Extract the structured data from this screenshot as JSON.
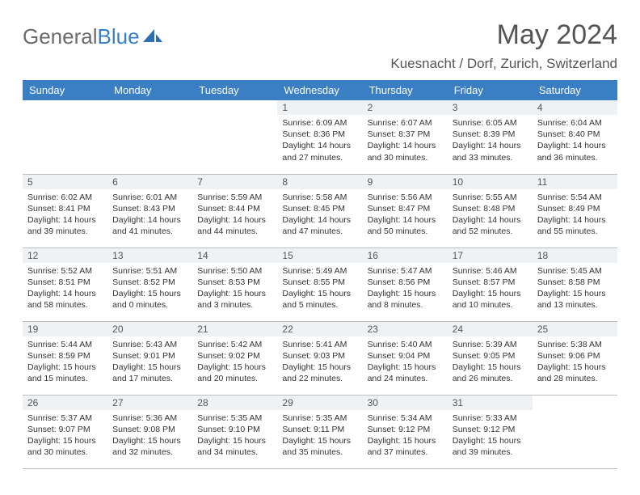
{
  "logo": {
    "text_gray": "General",
    "text_blue": "Blue"
  },
  "title": "May 2024",
  "location": "Kuesnacht / Dorf, Zurich, Switzerland",
  "day_headers": [
    "Sunday",
    "Monday",
    "Tuesday",
    "Wednesday",
    "Thursday",
    "Friday",
    "Saturday"
  ],
  "colors": {
    "header_bg": "#3a7fc4",
    "header_fg": "#ffffff",
    "daynum_bg": "#eef2f5",
    "border": "#bdbdbd",
    "text": "#333333",
    "logo_gray": "#6b6b6b",
    "logo_blue": "#3a7fc4"
  },
  "weeks": [
    [
      {
        "empty": true
      },
      {
        "empty": true
      },
      {
        "empty": true
      },
      {
        "n": "1",
        "sr": "Sunrise: 6:09 AM",
        "ss": "Sunset: 8:36 PM",
        "d1": "Daylight: 14 hours",
        "d2": "and 27 minutes."
      },
      {
        "n": "2",
        "sr": "Sunrise: 6:07 AM",
        "ss": "Sunset: 8:37 PM",
        "d1": "Daylight: 14 hours",
        "d2": "and 30 minutes."
      },
      {
        "n": "3",
        "sr": "Sunrise: 6:05 AM",
        "ss": "Sunset: 8:39 PM",
        "d1": "Daylight: 14 hours",
        "d2": "and 33 minutes."
      },
      {
        "n": "4",
        "sr": "Sunrise: 6:04 AM",
        "ss": "Sunset: 8:40 PM",
        "d1": "Daylight: 14 hours",
        "d2": "and 36 minutes."
      }
    ],
    [
      {
        "n": "5",
        "sr": "Sunrise: 6:02 AM",
        "ss": "Sunset: 8:41 PM",
        "d1": "Daylight: 14 hours",
        "d2": "and 39 minutes."
      },
      {
        "n": "6",
        "sr": "Sunrise: 6:01 AM",
        "ss": "Sunset: 8:43 PM",
        "d1": "Daylight: 14 hours",
        "d2": "and 41 minutes."
      },
      {
        "n": "7",
        "sr": "Sunrise: 5:59 AM",
        "ss": "Sunset: 8:44 PM",
        "d1": "Daylight: 14 hours",
        "d2": "and 44 minutes."
      },
      {
        "n": "8",
        "sr": "Sunrise: 5:58 AM",
        "ss": "Sunset: 8:45 PM",
        "d1": "Daylight: 14 hours",
        "d2": "and 47 minutes."
      },
      {
        "n": "9",
        "sr": "Sunrise: 5:56 AM",
        "ss": "Sunset: 8:47 PM",
        "d1": "Daylight: 14 hours",
        "d2": "and 50 minutes."
      },
      {
        "n": "10",
        "sr": "Sunrise: 5:55 AM",
        "ss": "Sunset: 8:48 PM",
        "d1": "Daylight: 14 hours",
        "d2": "and 52 minutes."
      },
      {
        "n": "11",
        "sr": "Sunrise: 5:54 AM",
        "ss": "Sunset: 8:49 PM",
        "d1": "Daylight: 14 hours",
        "d2": "and 55 minutes."
      }
    ],
    [
      {
        "n": "12",
        "sr": "Sunrise: 5:52 AM",
        "ss": "Sunset: 8:51 PM",
        "d1": "Daylight: 14 hours",
        "d2": "and 58 minutes."
      },
      {
        "n": "13",
        "sr": "Sunrise: 5:51 AM",
        "ss": "Sunset: 8:52 PM",
        "d1": "Daylight: 15 hours",
        "d2": "and 0 minutes."
      },
      {
        "n": "14",
        "sr": "Sunrise: 5:50 AM",
        "ss": "Sunset: 8:53 PM",
        "d1": "Daylight: 15 hours",
        "d2": "and 3 minutes."
      },
      {
        "n": "15",
        "sr": "Sunrise: 5:49 AM",
        "ss": "Sunset: 8:55 PM",
        "d1": "Daylight: 15 hours",
        "d2": "and 5 minutes."
      },
      {
        "n": "16",
        "sr": "Sunrise: 5:47 AM",
        "ss": "Sunset: 8:56 PM",
        "d1": "Daylight: 15 hours",
        "d2": "and 8 minutes."
      },
      {
        "n": "17",
        "sr": "Sunrise: 5:46 AM",
        "ss": "Sunset: 8:57 PM",
        "d1": "Daylight: 15 hours",
        "d2": "and 10 minutes."
      },
      {
        "n": "18",
        "sr": "Sunrise: 5:45 AM",
        "ss": "Sunset: 8:58 PM",
        "d1": "Daylight: 15 hours",
        "d2": "and 13 minutes."
      }
    ],
    [
      {
        "n": "19",
        "sr": "Sunrise: 5:44 AM",
        "ss": "Sunset: 8:59 PM",
        "d1": "Daylight: 15 hours",
        "d2": "and 15 minutes."
      },
      {
        "n": "20",
        "sr": "Sunrise: 5:43 AM",
        "ss": "Sunset: 9:01 PM",
        "d1": "Daylight: 15 hours",
        "d2": "and 17 minutes."
      },
      {
        "n": "21",
        "sr": "Sunrise: 5:42 AM",
        "ss": "Sunset: 9:02 PM",
        "d1": "Daylight: 15 hours",
        "d2": "and 20 minutes."
      },
      {
        "n": "22",
        "sr": "Sunrise: 5:41 AM",
        "ss": "Sunset: 9:03 PM",
        "d1": "Daylight: 15 hours",
        "d2": "and 22 minutes."
      },
      {
        "n": "23",
        "sr": "Sunrise: 5:40 AM",
        "ss": "Sunset: 9:04 PM",
        "d1": "Daylight: 15 hours",
        "d2": "and 24 minutes."
      },
      {
        "n": "24",
        "sr": "Sunrise: 5:39 AM",
        "ss": "Sunset: 9:05 PM",
        "d1": "Daylight: 15 hours",
        "d2": "and 26 minutes."
      },
      {
        "n": "25",
        "sr": "Sunrise: 5:38 AM",
        "ss": "Sunset: 9:06 PM",
        "d1": "Daylight: 15 hours",
        "d2": "and 28 minutes."
      }
    ],
    [
      {
        "n": "26",
        "sr": "Sunrise: 5:37 AM",
        "ss": "Sunset: 9:07 PM",
        "d1": "Daylight: 15 hours",
        "d2": "and 30 minutes."
      },
      {
        "n": "27",
        "sr": "Sunrise: 5:36 AM",
        "ss": "Sunset: 9:08 PM",
        "d1": "Daylight: 15 hours",
        "d2": "and 32 minutes."
      },
      {
        "n": "28",
        "sr": "Sunrise: 5:35 AM",
        "ss": "Sunset: 9:10 PM",
        "d1": "Daylight: 15 hours",
        "d2": "and 34 minutes."
      },
      {
        "n": "29",
        "sr": "Sunrise: 5:35 AM",
        "ss": "Sunset: 9:11 PM",
        "d1": "Daylight: 15 hours",
        "d2": "and 35 minutes."
      },
      {
        "n": "30",
        "sr": "Sunrise: 5:34 AM",
        "ss": "Sunset: 9:12 PM",
        "d1": "Daylight: 15 hours",
        "d2": "and 37 minutes."
      },
      {
        "n": "31",
        "sr": "Sunrise: 5:33 AM",
        "ss": "Sunset: 9:12 PM",
        "d1": "Daylight: 15 hours",
        "d2": "and 39 minutes."
      },
      {
        "empty": true
      }
    ]
  ]
}
